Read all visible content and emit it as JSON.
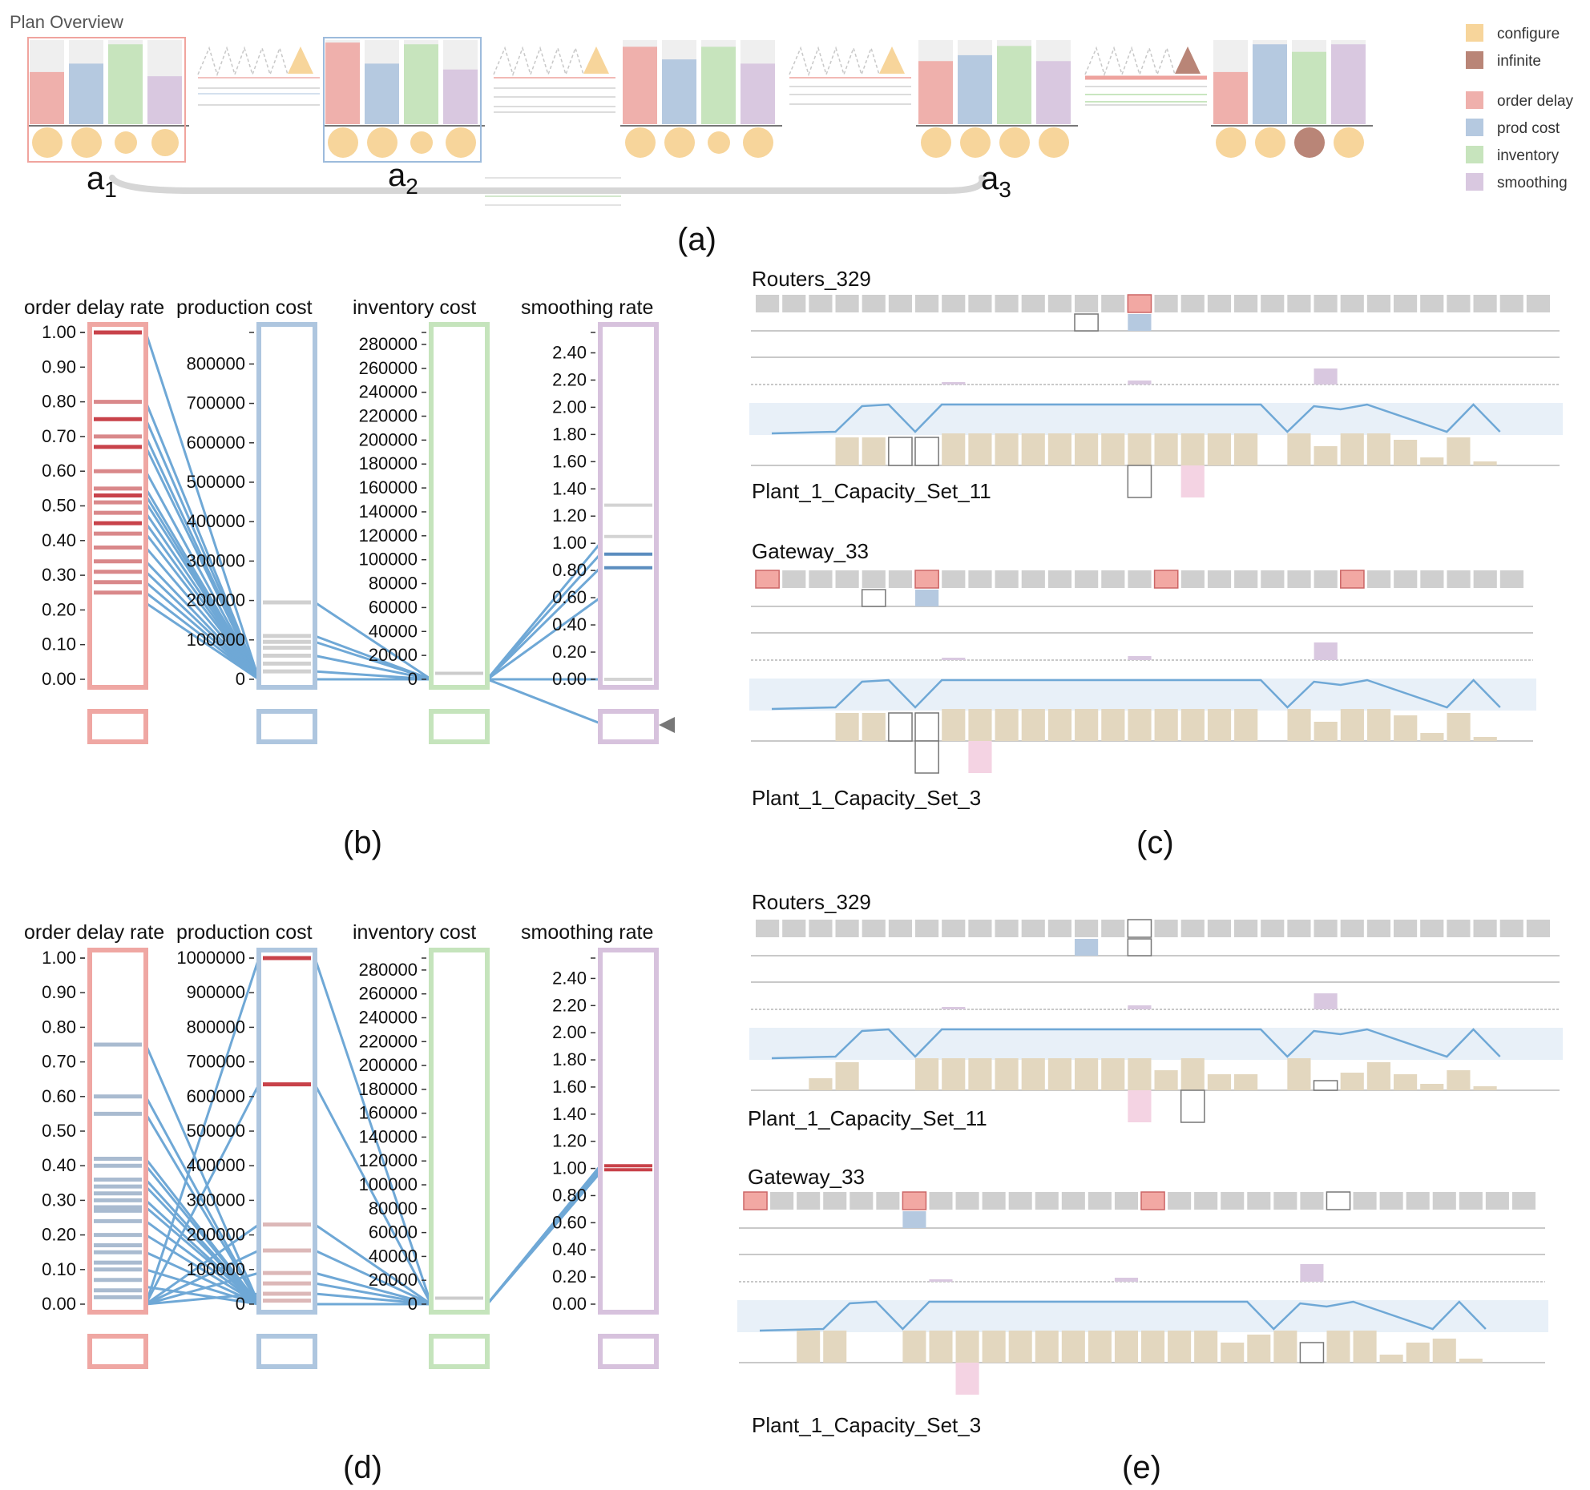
{
  "overview": {
    "title": "Plan Overview"
  },
  "legend": {
    "items": [
      {
        "label": "configure",
        "color": "#f7d59b"
      },
      {
        "label": "infinite",
        "color": "#b98577"
      },
      {
        "label": "order delay",
        "color": "#efb0ac"
      },
      {
        "label": "prod cost",
        "color": "#b5c9e0"
      },
      {
        "label": "inventory",
        "color": "#c7e4bd"
      },
      {
        "label": "smoothing",
        "color": "#d9c8e0"
      }
    ]
  },
  "annotations": {
    "a": "a",
    "sub1": "1",
    "sub2": "2",
    "sub3": "3"
  },
  "panel_labels": {
    "a": "(a)",
    "b": "(b)",
    "c": "(c)",
    "d": "(d)",
    "e": "(e)"
  },
  "parallel_axes": {
    "titles": [
      "order delay rate",
      "production cost",
      "inventory cost",
      "smoothing rate"
    ],
    "colors": [
      "#efa7a3",
      "#aec6df",
      "#c5e4bc",
      "#d7c2dd"
    ],
    "line_color": "#6fa8d6"
  },
  "node_labels": {
    "c_top": "Routers_329",
    "c_top_sub": "Plant_1_Capacity_Set_11",
    "c_bottom": "Gateway_33",
    "c_bottom_sub": "Plant_1_Capacity_Set_3",
    "e_top": "Routers_329",
    "e_top_sub": "Plant_1_Capacity_Set_11",
    "e_bottom": "Gateway_33",
    "e_bottom_sub": "Plant_1_Capacity_Set_3"
  },
  "chart_data": [
    {
      "type": "bar",
      "name": "plan-overview",
      "series_names": [
        "order delay",
        "prod cost",
        "inventory",
        "smoothing"
      ],
      "plans": [
        {
          "values": [
            0.62,
            0.72,
            0.95,
            0.57
          ],
          "circles": [
            "configure",
            "configure",
            "configure",
            "configure"
          ]
        },
        {
          "values": [
            0.97,
            0.72,
            0.95,
            0.65
          ],
          "circles": [
            "configure",
            "configure",
            "configure",
            "configure"
          ]
        },
        {
          "values": [
            0.92,
            0.77,
            0.92,
            0.72
          ],
          "circles": [
            "configure",
            "configure",
            "configure",
            "configure"
          ]
        },
        {
          "values": [
            0.75,
            0.82,
            0.93,
            0.75
          ],
          "circles": [
            "configure",
            "configure",
            "configure",
            "configure"
          ]
        },
        {
          "values": [
            0.62,
            0.95,
            0.86,
            0.95
          ],
          "circles": [
            "configure",
            "configure",
            "infinite",
            "configure"
          ]
        }
      ],
      "transitions": [
        {
          "marker": "configure"
        },
        {
          "marker": "configure"
        },
        {
          "marker": "configure"
        },
        {
          "marker": "infinite"
        }
      ]
    },
    {
      "type": "line",
      "name": "parallel-coordinates-b",
      "axes": [
        {
          "title": "order delay rate",
          "ylim": [
            0,
            1
          ],
          "ticks": [
            "0.00",
            "0.10",
            "0.20",
            "0.30",
            "0.40",
            "0.50",
            "0.60",
            "0.70",
            "0.80",
            "0.90",
            "1.00"
          ]
        },
        {
          "title": "production cost",
          "ylim": [
            0,
            880000
          ],
          "ticks": [
            "0",
            "100000",
            "200000",
            "300000",
            "400000",
            "500000",
            "600000",
            "700000",
            "800000"
          ]
        },
        {
          "title": "inventory cost",
          "ylim": [
            0,
            290000
          ],
          "ticks": [
            "0",
            "20000",
            "40000",
            "60000",
            "80000",
            "100000",
            "120000",
            "140000",
            "160000",
            "180000",
            "200000",
            "220000",
            "240000",
            "260000",
            "280000"
          ]
        },
        {
          "title": "smoothing rate",
          "ylim": [
            0,
            2.55
          ],
          "ticks": [
            "0.00",
            "0.20",
            "0.40",
            "0.60",
            "0.80",
            "1.00",
            "1.20",
            "1.40",
            "1.60",
            "1.80",
            "2.00",
            "2.20",
            "2.40"
          ]
        }
      ],
      "marks": {
        "order_delay_red": [
          1.0,
          0.75,
          0.67,
          0.53,
          0.45
        ],
        "order_delay_pink": [
          0.8,
          0.7,
          0.6,
          0.55,
          0.51,
          0.48,
          0.42,
          0.38,
          0.34,
          0.31,
          0.28,
          0.25
        ],
        "production_cost": [
          195000,
          110000,
          95000,
          80000,
          60000,
          40000,
          20000
        ],
        "inventory_cost": [
          5000
        ],
        "smoothing_gray": [
          1.28,
          1.05,
          0.0
        ],
        "smoothing_blue": [
          0.92,
          0.82
        ]
      },
      "links": {
        "order_delay_to_production": [
          [
            1.0,
            0
          ],
          [
            0.8,
            0
          ],
          [
            0.75,
            0
          ],
          [
            0.7,
            0
          ],
          [
            0.67,
            0
          ],
          [
            0.6,
            0
          ],
          [
            0.55,
            0
          ],
          [
            0.53,
            0
          ],
          [
            0.51,
            0
          ],
          [
            0.48,
            0
          ],
          [
            0.45,
            0
          ],
          [
            0.42,
            0
          ],
          [
            0.38,
            0
          ],
          [
            0.34,
            0
          ],
          [
            0.31,
            0
          ],
          [
            0.28,
            0
          ],
          [
            0.25,
            0
          ],
          [
            0.22,
            0
          ]
        ],
        "production_to_inventory": [
          [
            195000,
            0
          ],
          [
            110000,
            0
          ],
          [
            95000,
            0
          ],
          [
            60000,
            0
          ],
          [
            20000,
            0
          ],
          [
            0,
            0
          ]
        ],
        "inventory_to_smoothing": [
          [
            0,
            1.0
          ],
          [
            0,
            0.92
          ],
          [
            0,
            0.82
          ],
          [
            0,
            0.6
          ],
          [
            0,
            0.0
          ],
          [
            0,
            "below"
          ]
        ]
      }
    },
    {
      "type": "line",
      "name": "parallel-coordinates-d",
      "axes": [
        {
          "title": "order delay rate",
          "ylim": [
            0,
            1
          ],
          "ticks": [
            "0.00",
            "0.10",
            "0.20",
            "0.30",
            "0.40",
            "0.50",
            "0.60",
            "0.70",
            "0.80",
            "0.90",
            "1.00"
          ]
        },
        {
          "title": "production cost",
          "ylim": [
            0,
            1000000
          ],
          "ticks": [
            "0",
            "100000",
            "200000",
            "300000",
            "400000",
            "500000",
            "600000",
            "700000",
            "800000",
            "900000",
            "1000000"
          ]
        },
        {
          "title": "inventory cost",
          "ylim": [
            0,
            290000
          ],
          "ticks": [
            "0",
            "20000",
            "40000",
            "60000",
            "80000",
            "100000",
            "120000",
            "140000",
            "160000",
            "180000",
            "200000",
            "220000",
            "240000",
            "260000",
            "280000"
          ]
        },
        {
          "title": "smoothing rate",
          "ylim": [
            0,
            2.55
          ],
          "ticks": [
            "0.00",
            "0.20",
            "0.40",
            "0.60",
            "0.80",
            "1.00",
            "1.20",
            "1.40",
            "1.60",
            "1.80",
            "2.00",
            "2.20",
            "2.40"
          ]
        }
      ],
      "marks": {
        "order_delay_blue": [
          0.75,
          0.6,
          0.55,
          0.42,
          0.4,
          0.36,
          0.34,
          0.32,
          0.3,
          0.28,
          0.27,
          0.24,
          0.2,
          0.17,
          0.15,
          0.12,
          0.1,
          0.07,
          0.04,
          0.02
        ],
        "production_cost_red": [
          1000000,
          635000
        ],
        "production_cost_pink": [
          230000,
          155000,
          90000,
          60000,
          30000,
          10000
        ],
        "inventory_cost": [
          5000
        ],
        "smoothing_red": [
          1.02,
          0.99
        ]
      },
      "links": {
        "order_delay_to_production": [
          [
            0.75,
            0
          ],
          [
            0.6,
            0
          ],
          [
            0.55,
            0
          ],
          [
            0.42,
            0
          ],
          [
            0.4,
            0
          ],
          [
            0.36,
            0
          ],
          [
            0.34,
            0
          ],
          [
            0.3,
            0
          ],
          [
            0.28,
            0
          ],
          [
            0.24,
            0
          ],
          [
            0.2,
            0
          ],
          [
            0.15,
            0
          ],
          [
            0.1,
            0
          ],
          [
            0.05,
            0
          ],
          [
            0.0,
            1000000
          ],
          [
            0.0,
            635000
          ],
          [
            0.0,
            230000
          ],
          [
            0.0,
            155000
          ],
          [
            0.0,
            90000
          ],
          [
            0.0,
            30000
          ]
        ],
        "production_to_inventory": [
          [
            1000000,
            0
          ],
          [
            635000,
            0
          ],
          [
            230000,
            0
          ],
          [
            155000,
            0
          ],
          [
            90000,
            0
          ],
          [
            60000,
            0
          ],
          [
            30000,
            0
          ],
          [
            0,
            0
          ]
        ],
        "inventory_to_smoothing": [
          [
            0,
            1.02
          ],
          [
            0,
            0.99
          ],
          [
            0,
            1.0
          ],
          [
            0,
            0.97
          ],
          [
            0,
            1.01
          ]
        ]
      }
    }
  ]
}
